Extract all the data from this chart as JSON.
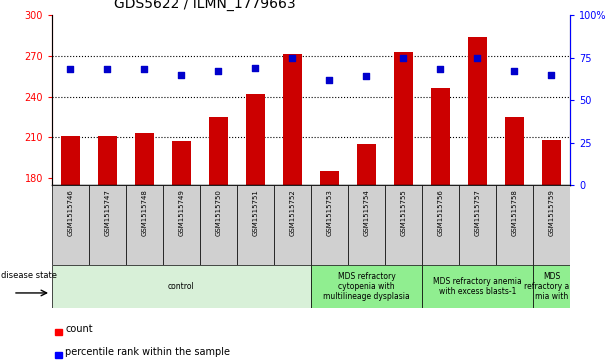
{
  "title": "GDS5622 / ILMN_1779663",
  "samples": [
    "GSM1515746",
    "GSM1515747",
    "GSM1515748",
    "GSM1515749",
    "GSM1515750",
    "GSM1515751",
    "GSM1515752",
    "GSM1515753",
    "GSM1515754",
    "GSM1515755",
    "GSM1515756",
    "GSM1515757",
    "GSM1515758",
    "GSM1515759"
  ],
  "counts": [
    211,
    211,
    213,
    207,
    225,
    242,
    271,
    185,
    205,
    273,
    246,
    284,
    225,
    208
  ],
  "percentiles": [
    68,
    68,
    68,
    65,
    67,
    69,
    75,
    62,
    64,
    75,
    68,
    75,
    67,
    65
  ],
  "ylim_left": [
    175,
    300
  ],
  "ylim_right": [
    0,
    100
  ],
  "yticks_left": [
    180,
    210,
    240,
    270,
    300
  ],
  "yticks_right": [
    0,
    25,
    50,
    75,
    100
  ],
  "bar_color": "#cc0000",
  "dot_color": "#0000cc",
  "bg_color": "#ffffff",
  "tick_bg_color": "#d0d0d0",
  "disease_groups": [
    {
      "label": "control",
      "start": 0,
      "end": 7,
      "color": "#d8f0d8"
    },
    {
      "label": "MDS refractory\ncytopenia with\nmultilineage dysplasia",
      "start": 7,
      "end": 10,
      "color": "#90ee90"
    },
    {
      "label": "MDS refractory anemia\nwith excess blasts-1",
      "start": 10,
      "end": 13,
      "color": "#90ee90"
    },
    {
      "label": "MDS\nrefractory ane\nmia with",
      "start": 13,
      "end": 14,
      "color": "#90ee90"
    }
  ],
  "title_fontsize": 10,
  "axis_fontsize": 7,
  "sample_fontsize": 5,
  "legend_fontsize": 7,
  "disease_fontsize": 5.5
}
